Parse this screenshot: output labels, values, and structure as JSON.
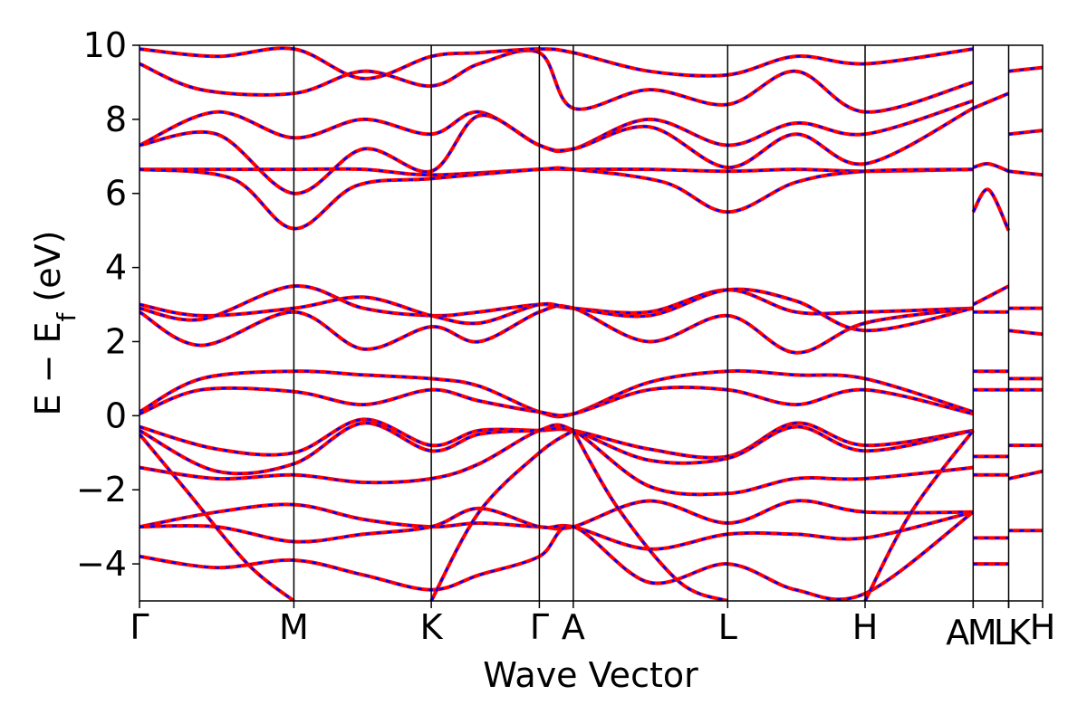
{
  "chart_data": {
    "type": "line",
    "xlabel": "Wave Vector",
    "ylabel": {
      "prefix": "E − E",
      "subscript": "f",
      "suffix": " (eV)"
    },
    "ylim": [
      -5,
      10
    ],
    "yticks": [
      {
        "value": 10,
        "label": "10"
      },
      {
        "value": 8,
        "label": "8"
      },
      {
        "value": 6,
        "label": "6"
      },
      {
        "value": 4,
        "label": "4"
      },
      {
        "value": 2,
        "label": "2"
      },
      {
        "value": 0,
        "label": "0"
      },
      {
        "value": -2,
        "label": "−2"
      },
      {
        "value": -4,
        "label": "−4"
      }
    ],
    "kpoints": [
      {
        "label": "Γ",
        "x": 0.0
      },
      {
        "label": "M",
        "x": 1.0
      },
      {
        "label": "K",
        "x": 1.89
      },
      {
        "label": "Γ",
        "x": 2.59
      },
      {
        "label": "A",
        "x": 2.81
      },
      {
        "label": "L",
        "x": 3.81
      },
      {
        "label": "H",
        "x": 4.7
      },
      {
        "label": "A",
        "x": 5.4
      },
      {
        "label": "M",
        "x": 5.4
      },
      {
        "label": "L",
        "x": 5.63
      },
      {
        "label": "K",
        "x": 5.63
      },
      {
        "label": "H",
        "x": 5.85
      }
    ],
    "kpoint_labels": [
      "Γ",
      "M",
      "K",
      "Γ",
      "A",
      "L",
      "H",
      "A",
      "M",
      "L",
      "K",
      "H"
    ],
    "segments": [
      0.0,
      1.0,
      1.89,
      2.59,
      2.81,
      3.81,
      4.7,
      5.4,
      5.63,
      5.85
    ],
    "series": [
      {
        "style": "solid",
        "color": "#ff0000",
        "bands": [
          {
            "x": [
              0,
              0.5,
              1.0,
              1.45,
              1.89,
              2.2,
              2.59,
              2.81,
              3.3,
              3.81,
              4.25,
              4.7,
              5.4
            ],
            "y": [
              7.3,
              8.2,
              7.5,
              8.0,
              7.6,
              8.2,
              7.3,
              7.2,
              8.0,
              7.3,
              7.9,
              7.6,
              8.5
            ]
          },
          {
            "x": [
              0,
              0.5,
              1.0,
              1.45,
              1.89,
              2.2,
              2.59,
              2.81,
              3.3,
              3.81,
              4.25,
              4.7,
              5.4
            ],
            "y": [
              7.3,
              7.6,
              6.0,
              7.2,
              6.6,
              8.1,
              7.3,
              7.2,
              7.8,
              6.7,
              7.6,
              6.8,
              8.3
            ]
          },
          {
            "x": [
              0,
              0.4,
              1.0,
              1.45,
              1.89,
              2.2,
              2.59,
              2.81,
              3.3,
              3.81,
              4.25,
              4.7,
              5.4
            ],
            "y": [
              9.5,
              8.8,
              8.7,
              9.3,
              8.9,
              9.5,
              9.8,
              8.3,
              8.8,
              8.4,
              9.3,
              8.2,
              9.0
            ]
          },
          {
            "x": [
              0,
              0.5,
              1.0,
              1.45,
              1.89,
              2.2,
              2.59,
              2.81,
              3.3,
              3.81,
              4.25,
              4.7,
              5.4
            ],
            "y": [
              9.9,
              9.7,
              9.9,
              9.1,
              9.7,
              9.8,
              9.9,
              9.8,
              9.3,
              9.2,
              9.7,
              9.5,
              9.9
            ]
          },
          {
            "x": [
              0,
              0.5,
              1.0,
              1.45,
              1.89,
              2.59,
              2.81,
              3.3,
              3.81,
              4.25,
              4.7,
              5.4
            ],
            "y": [
              6.65,
              6.65,
              6.65,
              6.65,
              6.5,
              6.65,
              6.65,
              6.65,
              6.6,
              6.65,
              6.6,
              6.65
            ]
          },
          {
            "x": [
              0,
              0.6,
              1.0,
              1.4,
              1.89,
              2.59,
              2.81,
              3.4,
              3.81,
              4.25,
              4.7,
              5.4
            ],
            "y": [
              6.65,
              6.4,
              5.05,
              6.2,
              6.4,
              6.65,
              6.65,
              6.3,
              5.5,
              6.3,
              6.6,
              6.65
            ]
          },
          {
            "x": [
              0,
              0.4,
              1.0,
              1.45,
              1.89,
              2.2,
              2.59,
              2.81,
              3.3,
              3.81,
              4.25,
              4.7,
              5.4
            ],
            "y": [
              2.9,
              2.6,
              3.5,
              2.9,
              2.7,
              2.8,
              3.0,
              2.9,
              2.8,
              3.4,
              2.8,
              2.8,
              2.9
            ]
          },
          {
            "x": [
              0,
              0.4,
              1.0,
              1.45,
              1.89,
              2.2,
              2.59,
              2.81,
              3.3,
              3.81,
              4.25,
              4.7,
              5.4
            ],
            "y": [
              2.8,
              1.9,
              2.8,
              1.8,
              2.4,
              2.0,
              2.8,
              2.9,
              2.0,
              2.7,
              1.7,
              2.5,
              2.9
            ]
          },
          {
            "x": [
              0,
              0.4,
              1.0,
              1.45,
              1.89,
              2.2,
              2.59,
              2.81,
              3.3,
              3.81,
              4.25,
              4.7,
              5.4
            ],
            "y": [
              3.0,
              2.7,
              2.9,
              3.2,
              2.7,
              2.5,
              3.0,
              2.9,
              2.7,
              3.4,
              3.1,
              2.3,
              2.9
            ]
          },
          {
            "x": [
              0,
              0.4,
              1.0,
              1.45,
              1.89,
              2.2,
              2.59,
              2.81,
              3.3,
              3.81,
              4.25,
              4.7,
              5.4
            ],
            "y": [
              0.1,
              1.0,
              1.2,
              1.1,
              1.0,
              0.8,
              0.1,
              0.05,
              0.9,
              1.2,
              1.1,
              1.0,
              0.1
            ]
          },
          {
            "x": [
              0,
              0.4,
              1.0,
              1.45,
              1.89,
              2.2,
              2.59,
              2.81,
              3.3,
              3.81,
              4.25,
              4.7,
              5.4
            ],
            "y": [
              0.05,
              0.7,
              0.65,
              0.3,
              0.7,
              0.4,
              0.1,
              0.05,
              0.7,
              0.7,
              0.3,
              0.7,
              0.05
            ]
          },
          {
            "x": [
              0,
              0.5,
              1.0,
              1.45,
              1.89,
              2.2,
              2.59,
              2.81,
              3.3,
              3.81,
              4.25,
              4.7,
              5.4
            ],
            "y": [
              -0.3,
              -0.9,
              -1.0,
              -0.1,
              -0.8,
              -0.4,
              -0.4,
              -0.4,
              -0.9,
              -1.1,
              -0.2,
              -0.8,
              -0.4
            ]
          },
          {
            "x": [
              0,
              0.5,
              1.0,
              1.45,
              1.89,
              2.2,
              2.59,
              2.81,
              3.3,
              3.81,
              4.25,
              4.7,
              5.4
            ],
            "y": [
              -0.4,
              -1.5,
              -1.3,
              -0.2,
              -0.95,
              -0.5,
              -0.4,
              -0.4,
              -1.2,
              -1.15,
              -0.3,
              -0.95,
              -0.4
            ]
          },
          {
            "x": [
              0,
              0.5,
              1.0,
              1.45,
              1.89,
              2.2,
              2.59,
              2.81,
              3.3,
              3.81,
              4.25,
              4.7,
              5.4
            ],
            "y": [
              -1.4,
              -1.7,
              -1.6,
              -1.8,
              -1.7,
              -1.3,
              -0.4,
              -0.4,
              -1.9,
              -2.1,
              -1.7,
              -1.7,
              -1.4
            ]
          },
          {
            "x": [
              0,
              0.5,
              1.0,
              1.45,
              1.89,
              2.2,
              2.59,
              2.81,
              3.3,
              3.81,
              4.25,
              4.7,
              5.4
            ],
            "y": [
              -3.0,
              -2.6,
              -2.4,
              -2.8,
              -3.0,
              -2.9,
              -3.0,
              -3.0,
              -2.3,
              -2.9,
              -2.3,
              -2.6,
              -2.6
            ]
          },
          {
            "x": [
              0,
              0.5,
              1.0,
              1.45,
              1.89,
              2.2,
              2.59,
              2.81,
              3.3,
              3.81,
              4.25,
              4.7,
              5.4
            ],
            "y": [
              -3.0,
              -3.0,
              -3.4,
              -3.2,
              -3.0,
              -2.5,
              -3.0,
              -3.0,
              -3.6,
              -3.2,
              -3.2,
              -3.3,
              -2.6
            ]
          },
          {
            "x": [
              0,
              0.5,
              1.0,
              1.45,
              1.89,
              2.2,
              2.59,
              2.81,
              3.3,
              3.81,
              4.25,
              4.7,
              5.4
            ],
            "y": [
              -3.8,
              -4.1,
              -3.9,
              -4.3,
              -4.7,
              -4.3,
              -3.8,
              -3.0,
              -4.5,
              -4.0,
              -4.7,
              -4.8,
              -2.6
            ]
          },
          {
            "x": [
              0,
              0.3,
              0.7,
              1.0
            ],
            "y": [
              -0.5,
              -2.0,
              -4.0,
              -5.0
            ]
          },
          {
            "x": [
              1.89,
              2.2,
              2.59,
              2.81
            ],
            "y": [
              -5.0,
              -2.6,
              -1.0,
              -0.4
            ]
          },
          {
            "x": [
              2.81,
              3.1,
              3.5,
              3.81
            ],
            "y": [
              -0.4,
              -2.5,
              -4.5,
              -5.0
            ]
          },
          {
            "x": [
              4.7,
              5.0,
              5.4
            ],
            "y": [
              -5.0,
              -2.6,
              -0.4
            ]
          },
          {
            "x": [
              5.4,
              5.63
            ],
            "y": [
              1.2,
              1.2
            ]
          },
          {
            "x": [
              5.4,
              5.63
            ],
            "y": [
              0.7,
              0.7
            ]
          },
          {
            "x": [
              5.4,
              5.63
            ],
            "y": [
              -1.1,
              -1.1
            ]
          },
          {
            "x": [
              5.4,
              5.63
            ],
            "y": [
              -1.6,
              -1.6
            ]
          },
          {
            "x": [
              5.4,
              5.63
            ],
            "y": [
              -3.3,
              -3.3
            ]
          },
          {
            "x": [
              5.4,
              5.63
            ],
            "y": [
              -4.0,
              -4.0
            ]
          },
          {
            "x": [
              5.4,
              5.63
            ],
            "y": [
              3.0,
              3.5
            ]
          },
          {
            "x": [
              5.4,
              5.63
            ],
            "y": [
              2.8,
              2.8
            ]
          },
          {
            "x": [
              5.4,
              5.5,
              5.63
            ],
            "y": [
              5.5,
              6.1,
              5.0
            ]
          },
          {
            "x": [
              5.4,
              5.5,
              5.63
            ],
            "y": [
              6.7,
              6.8,
              6.6
            ]
          },
          {
            "x": [
              5.4,
              5.63
            ],
            "y": [
              8.3,
              8.7
            ]
          },
          {
            "x": [
              5.63,
              5.85
            ],
            "y": [
              1.0,
              1.0
            ]
          },
          {
            "x": [
              5.63,
              5.85
            ],
            "y": [
              0.7,
              0.7
            ]
          },
          {
            "x": [
              5.63,
              5.85
            ],
            "y": [
              -0.8,
              -0.8
            ]
          },
          {
            "x": [
              5.63,
              5.85
            ],
            "y": [
              -1.7,
              -1.5
            ]
          },
          {
            "x": [
              5.63,
              5.85
            ],
            "y": [
              -3.1,
              -3.1
            ]
          },
          {
            "x": [
              5.63,
              5.85
            ],
            "y": [
              2.9,
              2.9
            ]
          },
          {
            "x": [
              5.63,
              5.85
            ],
            "y": [
              2.3,
              2.2
            ]
          },
          {
            "x": [
              5.63,
              5.85
            ],
            "y": [
              6.6,
              6.5
            ]
          },
          {
            "x": [
              5.63,
              5.85
            ],
            "y": [
              7.6,
              7.7
            ]
          },
          {
            "x": [
              5.63,
              5.85
            ],
            "y": [
              9.3,
              9.4
            ]
          }
        ]
      },
      {
        "style": "dashed",
        "color": "#0000ff"
      }
    ],
    "grid": false,
    "legend": "none"
  }
}
